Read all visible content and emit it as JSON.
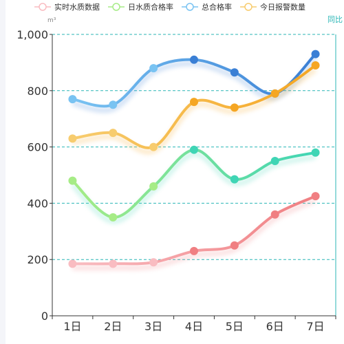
{
  "chart_data": {
    "type": "line",
    "categories": [
      "1日",
      "2日",
      "3日",
      "4日",
      "5日",
      "6日",
      "7日"
    ],
    "series": [
      {
        "name": "实时水质数据",
        "values": [
          185,
          185,
          190,
          230,
          250,
          360,
          425
        ],
        "color": "#f07f82",
        "color_start": "#f9bcc1"
      },
      {
        "name": "日水质合格率",
        "values": [
          480,
          350,
          460,
          590,
          485,
          550,
          580
        ],
        "color": "#3fd5b5",
        "color_start": "#a6ec86"
      },
      {
        "name": "总合格率",
        "values": [
          770,
          750,
          880,
          910,
          865,
          790,
          930
        ],
        "color": "#3a7fd5",
        "color_start": "#79c3f2"
      },
      {
        "name": "今日报警数量",
        "values": [
          630,
          650,
          600,
          760,
          740,
          790,
          890
        ],
        "color": "#f5a623",
        "color_start": "#f7cc6e"
      }
    ],
    "ylim": [
      0,
      1000
    ],
    "yticks": [
      0,
      200,
      400,
      600,
      800,
      1000
    ],
    "ytick_labels": [
      "0",
      "200",
      "400",
      "600",
      "800",
      "1,000"
    ],
    "yunit_left": "m³",
    "yunit_right": "同比",
    "grid": true,
    "legend": "top"
  }
}
